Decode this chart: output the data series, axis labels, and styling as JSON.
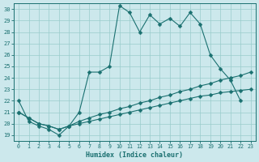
{
  "xlabel": "Humidex (Indice chaleur)",
  "bg_color": "#cce8ec",
  "grid_color": "#99cccc",
  "line_color": "#1a7070",
  "xlim": [
    -0.5,
    23.5
  ],
  "ylim": [
    18.5,
    30.5
  ],
  "yticks": [
    19,
    20,
    21,
    22,
    23,
    24,
    25,
    26,
    27,
    28,
    29,
    30
  ],
  "xticks": [
    0,
    1,
    2,
    3,
    4,
    5,
    6,
    7,
    8,
    9,
    10,
    11,
    12,
    13,
    14,
    15,
    16,
    17,
    18,
    19,
    20,
    21,
    22,
    23
  ],
  "series1_x": [
    0,
    1,
    2,
    3,
    4,
    5,
    6,
    7,
    8,
    9,
    10,
    11,
    12,
    13,
    14,
    15,
    16,
    17,
    18,
    19,
    20,
    21,
    22
  ],
  "series1_y": [
    22.0,
    20.2,
    19.8,
    19.5,
    19.0,
    19.8,
    21.0,
    24.5,
    24.5,
    25.0,
    30.3,
    29.7,
    28.0,
    29.5,
    28.7,
    29.2,
    28.5,
    29.7,
    28.7,
    26.0,
    24.8,
    23.8,
    22.0
  ],
  "series2_x": [
    0,
    1,
    2,
    3,
    4,
    5,
    6,
    7,
    8,
    9,
    10,
    11,
    12,
    13,
    14,
    15,
    16,
    17,
    18,
    19,
    20,
    21,
    22,
    23
  ],
  "series2_y": [
    21.0,
    20.5,
    20.0,
    19.8,
    19.5,
    19.8,
    20.2,
    20.5,
    20.8,
    21.0,
    21.3,
    21.5,
    21.8,
    22.0,
    22.3,
    22.5,
    22.8,
    23.0,
    23.3,
    23.5,
    23.8,
    24.0,
    24.2,
    24.5
  ],
  "series3_x": [
    0,
    1,
    2,
    3,
    4,
    5,
    6,
    7,
    8,
    9,
    10,
    11,
    12,
    13,
    14,
    15,
    16,
    17,
    18,
    19,
    20,
    21,
    22,
    23
  ],
  "series3_y": [
    21.0,
    20.5,
    20.0,
    19.8,
    19.5,
    19.8,
    20.0,
    20.2,
    20.4,
    20.6,
    20.8,
    21.0,
    21.2,
    21.4,
    21.6,
    21.8,
    22.0,
    22.2,
    22.4,
    22.5,
    22.7,
    22.8,
    22.9,
    23.0
  ]
}
